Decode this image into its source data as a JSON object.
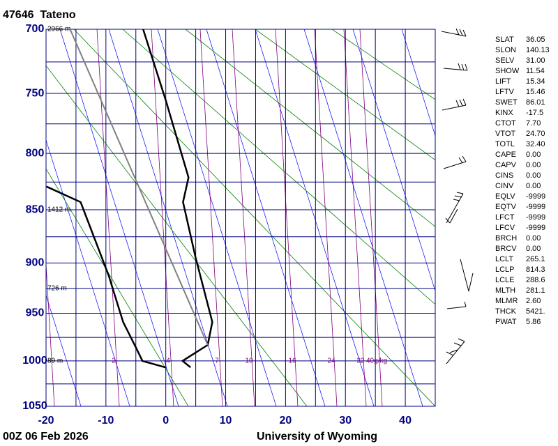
{
  "chart_data": {
    "type": "skewt",
    "title": "47646  Tateno",
    "xlim": [
      -20,
      45
    ],
    "xticks": [
      -20,
      -10,
      0,
      10,
      20,
      30,
      40
    ],
    "xminor": [
      -15,
      -5,
      5,
      15,
      25,
      35
    ],
    "ylim": [
      1050,
      700
    ],
    "ylog": true,
    "yticks": [
      700,
      750,
      800,
      850,
      900,
      950,
      1000,
      1050
    ],
    "yminor": [
      725,
      775,
      825,
      875,
      925,
      975,
      1025
    ],
    "temperature": {
      "color": "#000000",
      "pressure": [
        1007,
        1000,
        983,
        959,
        895,
        843,
        821,
        756,
        700
      ],
      "values": [
        4.3,
        2.8,
        6.6,
        6.8,
        2.4,
        -1.1,
        -0.8,
        -6.5,
        -12.1
      ]
    },
    "dewpoint": {
      "color": "#000000",
      "pressure": [
        1007,
        1000,
        985,
        959,
        912,
        843,
        829
      ],
      "values": [
        0.1,
        -3.9,
        -5.4,
        -8.1,
        -11.7,
        -18.2,
        -24.3
      ]
    },
    "parcel": {
      "color": "#808080",
      "pressure": [
        983,
        700
      ],
      "values": [
        6.6,
        -24.3
      ]
    },
    "height_labels": [
      {
        "pressure": 700,
        "label": "2966 m"
      },
      {
        "pressure": 850,
        "label": "1412 m"
      },
      {
        "pressure": 925,
        "label": "726 m"
      },
      {
        "pressure": 1000,
        "label": "89 m"
      }
    ],
    "mixing_ratio_labels": [
      "2",
      "4",
      "7",
      "10",
      "16",
      "24",
      "32",
      "40g/kg"
    ],
    "indices": [
      [
        "SLAT",
        "36.05"
      ],
      [
        "SLON",
        "140.13"
      ],
      [
        "SELV",
        "31.00"
      ],
      [
        "SHOW",
        "11.54"
      ],
      [
        "LIFT",
        "15.34"
      ],
      [
        "LFTV",
        "15.46"
      ],
      [
        "SWET",
        "86.01"
      ],
      [
        "KINX",
        "-17.5"
      ],
      [
        "CTOT",
        "7.70"
      ],
      [
        "VTOT",
        "24.70"
      ],
      [
        "TOTL",
        "32.40"
      ],
      [
        "CAPE",
        "0.00"
      ],
      [
        "CAPV",
        "0.00"
      ],
      [
        "CINS",
        "0.00"
      ],
      [
        "CINV",
        "0.00"
      ],
      [
        "EQLV",
        "-9999"
      ],
      [
        "EQTV",
        "-9999"
      ],
      [
        "LFCT",
        "-9999"
      ],
      [
        "LFCV",
        "-9999"
      ],
      [
        "BRCH",
        "0.00"
      ],
      [
        "BRCV",
        "0.00"
      ],
      [
        "LCLT",
        "265.1"
      ],
      [
        "LCLP",
        "814.3"
      ],
      [
        "LCLE",
        "288.6"
      ],
      [
        "MLTH",
        "281.1"
      ],
      [
        "MLMR",
        "2.60"
      ],
      [
        "THCK",
        "5421."
      ],
      [
        "PWAT",
        "5.86"
      ]
    ],
    "footer_left": "00Z 06 Feb 2026",
    "footer_right": "University of Wyoming"
  }
}
